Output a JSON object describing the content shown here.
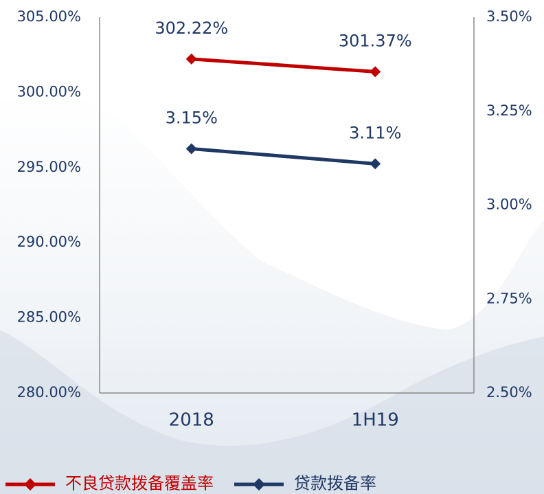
{
  "chart_data": {
    "type": "line",
    "categories": [
      "2018",
      "1H19"
    ],
    "series": [
      {
        "name": "不良贷款拨备覆盖率",
        "color": "#c00000",
        "axis": "y",
        "values": [
          302.22,
          301.37
        ],
        "value_labels": [
          "302.22%",
          "301.37%"
        ]
      },
      {
        "name": "贷款拨备率",
        "color": "#1f3864",
        "axis": "y2",
        "values": [
          3.15,
          3.11
        ],
        "value_labels": [
          "3.15%",
          "3.11%"
        ]
      }
    ],
    "ylim": [
      280,
      305
    ],
    "yticks": [
      {
        "value": 280,
        "label": "280.00%"
      },
      {
        "value": 285,
        "label": "285.00%"
      },
      {
        "value": 290,
        "label": "290.00%"
      },
      {
        "value": 295,
        "label": "295.00%"
      },
      {
        "value": 300,
        "label": "300.00%"
      },
      {
        "value": 305,
        "label": "305.00%"
      }
    ],
    "y2lim": [
      2.5,
      3.5
    ],
    "y2ticks": [
      {
        "value": 2.5,
        "label": "2.50%"
      },
      {
        "value": 2.75,
        "label": "2.75%"
      },
      {
        "value": 3.0,
        "label": "3.00%"
      },
      {
        "value": 3.25,
        "label": "3.25%"
      },
      {
        "value": 3.5,
        "label": "3.50%"
      }
    ],
    "grid": false,
    "legend": "bottom"
  }
}
